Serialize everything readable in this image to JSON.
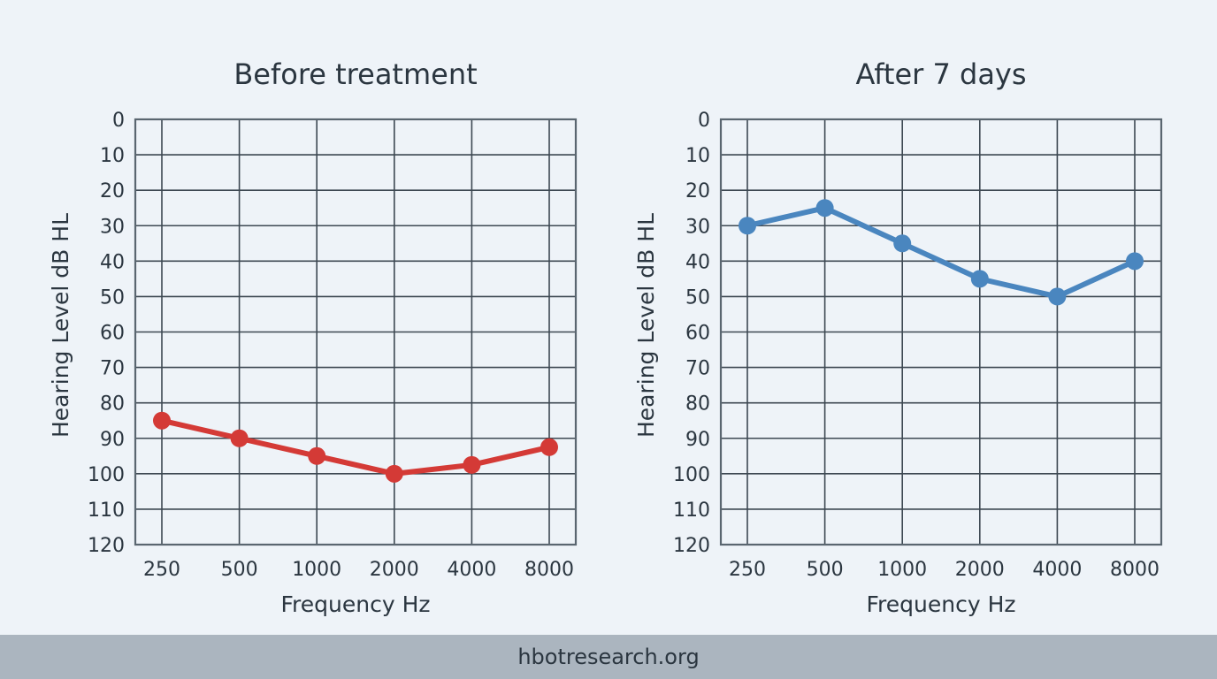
{
  "footer": {
    "text": "hbotresearch.org"
  },
  "chart_data": [
    {
      "type": "line",
      "title": "Before treatment",
      "xlabel": "Frequency Hz",
      "ylabel": "Hearing Level dB HL",
      "categories": [
        "250",
        "500",
        "1000",
        "2000",
        "4000",
        "8000"
      ],
      "yticks": [
        "0",
        "10",
        "20",
        "30",
        "40",
        "50",
        "60",
        "70",
        "80",
        "90",
        "100",
        "110",
        "120"
      ],
      "ylim": [
        0,
        120
      ],
      "y_inverted": true,
      "grid": true,
      "color": "#d43a36",
      "series": [
        {
          "values": [
            85,
            90,
            95,
            100,
            97.5,
            92.5
          ]
        }
      ]
    },
    {
      "type": "line",
      "title": "After 7 days",
      "xlabel": "Frequency Hz",
      "ylabel": "Hearing Level dB HL",
      "categories": [
        "250",
        "500",
        "1000",
        "2000",
        "4000",
        "8000"
      ],
      "yticks": [
        "0",
        "10",
        "20",
        "30",
        "40",
        "50",
        "60",
        "70",
        "80",
        "90",
        "100",
        "110",
        "120"
      ],
      "ylim": [
        0,
        120
      ],
      "y_inverted": true,
      "grid": true,
      "color": "#4a86bf",
      "series": [
        {
          "values": [
            30,
            25,
            35,
            45,
            50,
            40
          ]
        }
      ]
    }
  ]
}
